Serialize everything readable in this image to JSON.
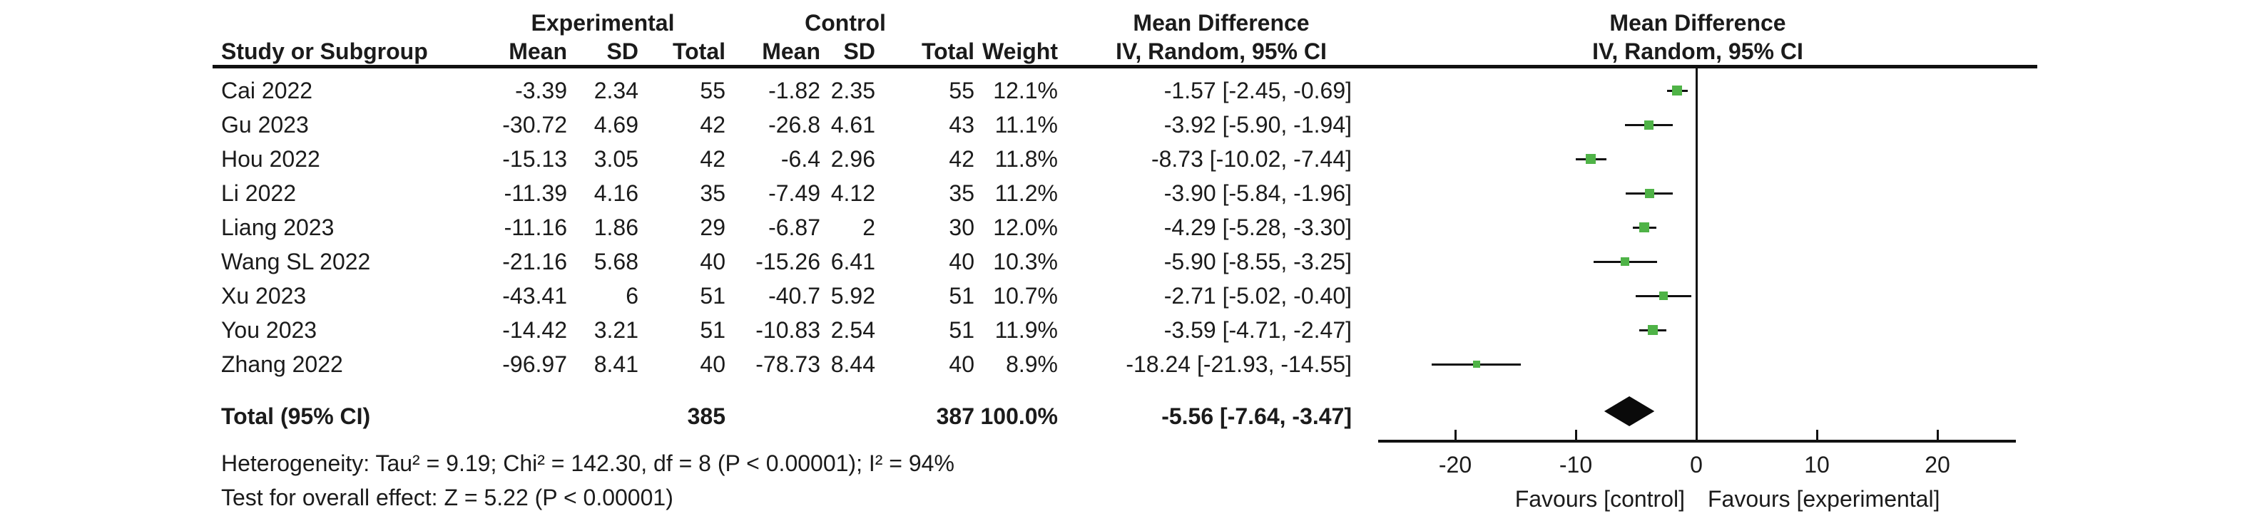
{
  "header": {
    "group_experimental": "Experimental",
    "group_control": "Control",
    "stats_title": "Mean Difference",
    "stats_subtitle": "IV, Random, 95% CI",
    "plot_title": "Mean Difference",
    "plot_subtitle": "IV, Random, 95% CI",
    "study_col": "Study or Subgroup",
    "exp_mean_col": "Mean",
    "exp_sd_col": "SD",
    "exp_total_col": "Total",
    "ctl_mean_col": "Mean",
    "ctl_sd_col": "SD",
    "ctl_total_col": "Total",
    "weight_col": "Weight"
  },
  "colors": {
    "marker_green": "#4FB347",
    "diamond_black": "#0a0a0a",
    "line_black": "#111111"
  },
  "chart_data": {
    "type": "forest",
    "effect_measure": "Mean Difference",
    "model": "IV, Random, 95% CI",
    "axis": {
      "ticks": [
        -20,
        -10,
        0,
        10,
        20
      ],
      "range": [
        -26.4,
        26.5
      ],
      "label_left": "Favours [control]",
      "label_right": "Favours [experimental]"
    },
    "studies": [
      {
        "name": "Cai 2022",
        "exp_mean": "-3.39",
        "exp_sd": "2.34",
        "exp_total": "55",
        "ctl_mean": "-1.82",
        "ctl_sd": "2.35",
        "ctl_total": "55",
        "weight": "12.1%",
        "weight_value": 12.1,
        "md": -1.57,
        "ci_low": -2.45,
        "ci_high": -0.69,
        "ci_text": "-1.57 [-2.45, -0.69]"
      },
      {
        "name": "Gu 2023",
        "exp_mean": "-30.72",
        "exp_sd": "4.69",
        "exp_total": "42",
        "ctl_mean": "-26.8",
        "ctl_sd": "4.61",
        "ctl_total": "43",
        "weight": "11.1%",
        "weight_value": 11.1,
        "md": -3.92,
        "ci_low": -5.9,
        "ci_high": -1.94,
        "ci_text": "-3.92 [-5.90, -1.94]"
      },
      {
        "name": "Hou 2022",
        "exp_mean": "-15.13",
        "exp_sd": "3.05",
        "exp_total": "42",
        "ctl_mean": "-6.4",
        "ctl_sd": "2.96",
        "ctl_total": "42",
        "weight": "11.8%",
        "weight_value": 11.8,
        "md": -8.73,
        "ci_low": -10.02,
        "ci_high": -7.44,
        "ci_text": "-8.73 [-10.02, -7.44]"
      },
      {
        "name": "Li 2022",
        "exp_mean": "-11.39",
        "exp_sd": "4.16",
        "exp_total": "35",
        "ctl_mean": "-7.49",
        "ctl_sd": "4.12",
        "ctl_total": "35",
        "weight": "11.2%",
        "weight_value": 11.2,
        "md": -3.9,
        "ci_low": -5.84,
        "ci_high": -1.96,
        "ci_text": "-3.90 [-5.84, -1.96]"
      },
      {
        "name": "Liang 2023",
        "exp_mean": "-11.16",
        "exp_sd": "1.86",
        "exp_total": "29",
        "ctl_mean": "-6.87",
        "ctl_sd": "2",
        "ctl_total": "30",
        "weight": "12.0%",
        "weight_value": 12.0,
        "md": -4.29,
        "ci_low": -5.28,
        "ci_high": -3.3,
        "ci_text": "-4.29 [-5.28, -3.30]"
      },
      {
        "name": "Wang SL 2022",
        "exp_mean": "-21.16",
        "exp_sd": "5.68",
        "exp_total": "40",
        "ctl_mean": "-15.26",
        "ctl_sd": "6.41",
        "ctl_total": "40",
        "weight": "10.3%",
        "weight_value": 10.3,
        "md": -5.9,
        "ci_low": -8.55,
        "ci_high": -3.25,
        "ci_text": "-5.90 [-8.55, -3.25]"
      },
      {
        "name": "Xu 2023",
        "exp_mean": "-43.41",
        "exp_sd": "6",
        "exp_total": "51",
        "ctl_mean": "-40.7",
        "ctl_sd": "5.92",
        "ctl_total": "51",
        "weight": "10.7%",
        "weight_value": 10.7,
        "md": -2.71,
        "ci_low": -5.02,
        "ci_high": -0.4,
        "ci_text": "-2.71 [-5.02, -0.40]"
      },
      {
        "name": "You 2023",
        "exp_mean": "-14.42",
        "exp_sd": "3.21",
        "exp_total": "51",
        "ctl_mean": "-10.83",
        "ctl_sd": "2.54",
        "ctl_total": "51",
        "weight": "11.9%",
        "weight_value": 11.9,
        "md": -3.59,
        "ci_low": -4.71,
        "ci_high": -2.47,
        "ci_text": "-3.59 [-4.71, -2.47]"
      },
      {
        "name": "Zhang 2022",
        "exp_mean": "-96.97",
        "exp_sd": "8.41",
        "exp_total": "40",
        "ctl_mean": "-78.73",
        "ctl_sd": "8.44",
        "ctl_total": "40",
        "weight": "8.9%",
        "weight_value": 8.9,
        "md": -18.24,
        "ci_low": -21.93,
        "ci_high": -14.55,
        "ci_text": "-18.24 [-21.93, -14.55]"
      }
    ],
    "total": {
      "label": "Total (95% CI)",
      "exp_total": "385",
      "ctl_total": "387",
      "weight": "100.0%",
      "md": -5.56,
      "ci_low": -7.64,
      "ci_high": -3.47,
      "ci_text": "-5.56 [-7.64, -3.47]"
    },
    "heterogeneity": "Heterogeneity: Tau² = 9.19; Chi² = 142.30, df = 8 (P < 0.00001); I² = 94%",
    "overall_effect": "Test for overall effect: Z = 5.22 (P < 0.00001)"
  }
}
